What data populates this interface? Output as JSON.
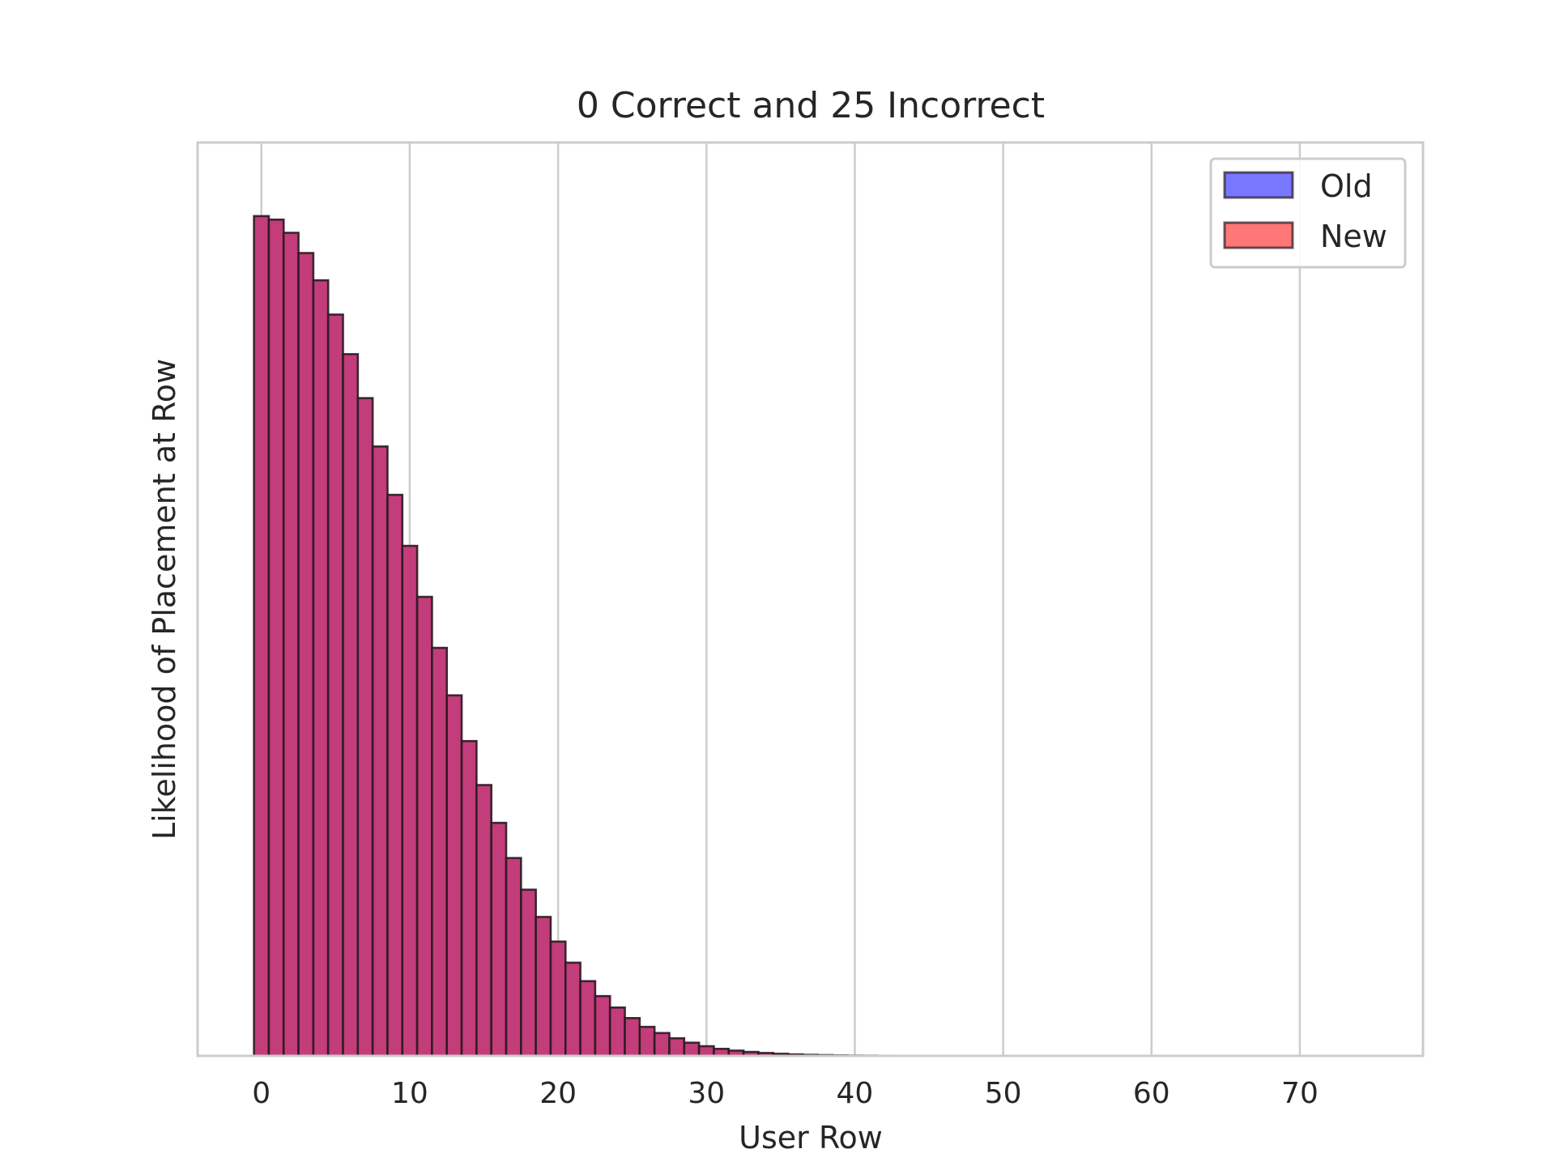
{
  "chart_data": {
    "type": "bar",
    "title": "0 Correct and 25 Incorrect",
    "xlabel": "User Row",
    "ylabel": "Likelihood of Placement at Row",
    "xlim": [
      -4.3,
      78.3
    ],
    "ylim": [
      0,
      1.0
    ],
    "xticks": [
      0,
      10,
      20,
      30,
      40,
      50,
      60,
      70
    ],
    "yticks_visible": false,
    "grid": "vertical",
    "legend_position": "top-right",
    "colors": {
      "old": "#7777ff",
      "new": "#ff7777",
      "overlap": "#c23d79",
      "edge": "#2a1a22",
      "grid": "#cccccc",
      "frame": "#cccccc"
    },
    "x": [
      0,
      1,
      2,
      3,
      4,
      5,
      6,
      7,
      8,
      9,
      10,
      11,
      12,
      13,
      14,
      15,
      16,
      17,
      18,
      19,
      20,
      21,
      22,
      23,
      24,
      25,
      26,
      27,
      28,
      29,
      30,
      31,
      32,
      33,
      34,
      35,
      36,
      37,
      38,
      39,
      40,
      41,
      42,
      43,
      44,
      45,
      46,
      47,
      48,
      49,
      50,
      51,
      52,
      53,
      54,
      55,
      56,
      57,
      58,
      59,
      60,
      61,
      62,
      63,
      64,
      65,
      66,
      67,
      68,
      69,
      70,
      71,
      72,
      73,
      74
    ],
    "series": [
      {
        "name": "Old",
        "values": [
          0.955,
          0.951,
          0.936,
          0.913,
          0.882,
          0.843,
          0.798,
          0.748,
          0.693,
          0.638,
          0.58,
          0.522,
          0.464,
          0.41,
          0.358,
          0.308,
          0.265,
          0.225,
          0.189,
          0.158,
          0.13,
          0.106,
          0.085,
          0.068,
          0.055,
          0.043,
          0.033,
          0.026,
          0.02,
          0.015,
          0.011,
          0.008,
          0.006,
          0.0045,
          0.0033,
          0.0024,
          0.0017,
          0.0012,
          0.0009,
          0.0006,
          0.0004,
          0.0003,
          0.0002,
          0,
          0,
          0,
          0,
          0,
          0,
          0,
          0,
          0,
          0,
          0,
          0,
          0,
          0,
          0,
          0,
          0,
          0,
          0,
          0,
          0,
          0,
          0,
          0,
          0,
          0,
          0,
          0,
          0,
          0,
          0,
          0
        ]
      },
      {
        "name": "New",
        "values": [
          0.955,
          0.951,
          0.936,
          0.913,
          0.882,
          0.843,
          0.798,
          0.748,
          0.693,
          0.638,
          0.58,
          0.522,
          0.464,
          0.41,
          0.358,
          0.308,
          0.265,
          0.225,
          0.189,
          0.158,
          0.13,
          0.106,
          0.085,
          0.068,
          0.055,
          0.043,
          0.033,
          0.026,
          0.02,
          0.015,
          0.011,
          0.008,
          0.006,
          0.0045,
          0.0033,
          0.0024,
          0.0017,
          0.0012,
          0.0009,
          0.0006,
          0.0004,
          0.0003,
          0.0002,
          0,
          0,
          0,
          0,
          0,
          0,
          0,
          0,
          0,
          0,
          0,
          0,
          0,
          0,
          0,
          0,
          0,
          0,
          0,
          0,
          0,
          0,
          0,
          0,
          0,
          0,
          0,
          0,
          0,
          0,
          0,
          0
        ]
      }
    ]
  }
}
